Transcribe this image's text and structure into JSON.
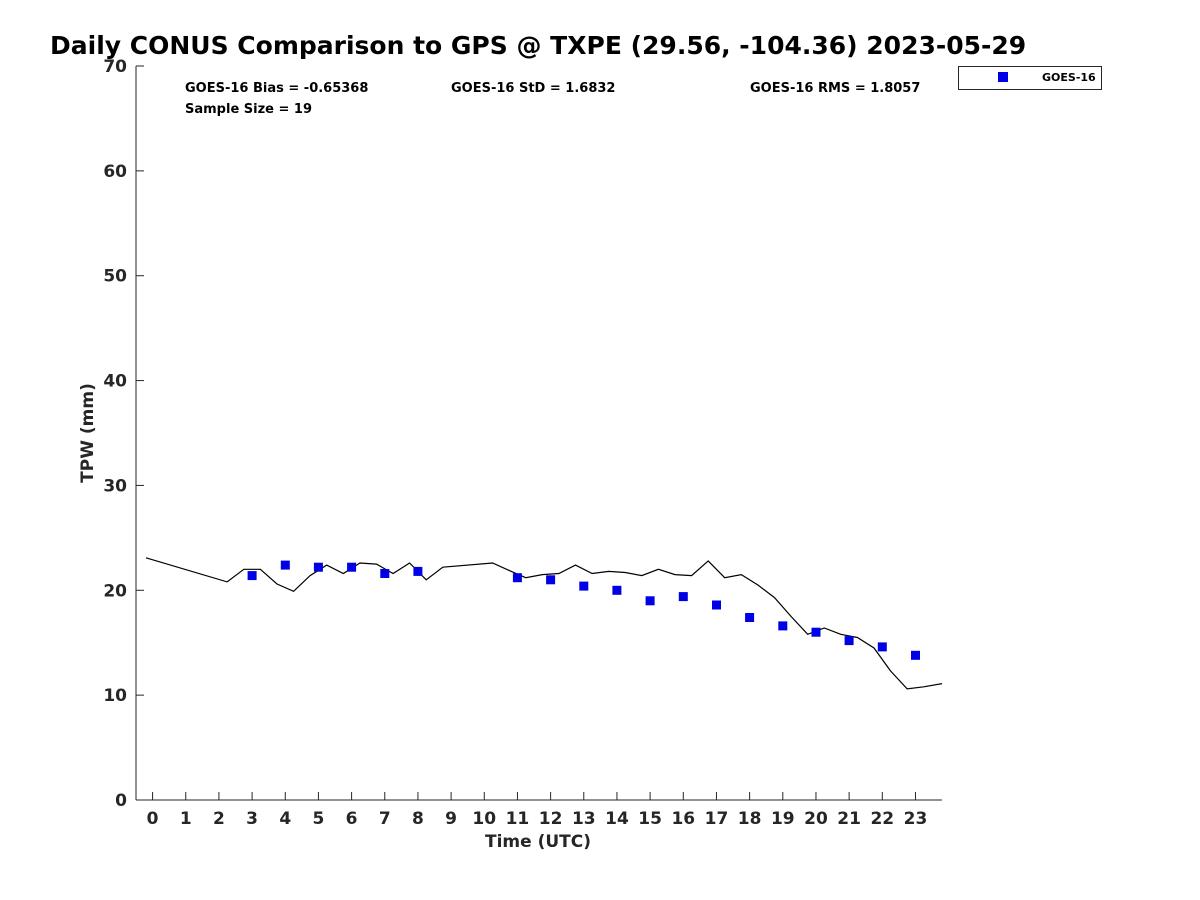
{
  "chart_data": {
    "type": "scatter",
    "title": "Daily CONUS Comparison to GPS @ TXPE (29.56, -104.36) 2023-05-29",
    "xlabel": "Time (UTC)",
    "ylabel": "TPW (mm)",
    "xlim": [
      -0.5,
      23.8
    ],
    "ylim": [
      0,
      70
    ],
    "xticks": [
      "0",
      "1",
      "2",
      "3",
      "4",
      "5",
      "6",
      "7",
      "8",
      "9",
      "10",
      "11",
      "12",
      "13",
      "14",
      "15",
      "16",
      "17",
      "18",
      "19",
      "20",
      "21",
      "22",
      "23"
    ],
    "yticks": [
      "0",
      "10",
      "20",
      "30",
      "40",
      "50",
      "60",
      "70"
    ],
    "grid": false,
    "legend_position": "top-right, outside plot",
    "stats": {
      "bias": "GOES-16 Bias = -0.65368",
      "std": "GOES-16 StD = 1.6832",
      "rms": "GOES-16 RMS = 1.8057",
      "sample_size": "Sample Size = 19"
    },
    "series": [
      {
        "name": "GOES-16",
        "kind": "scatter",
        "color": "#0000e6",
        "marker": "square",
        "x": [
          3,
          4,
          5,
          6,
          7,
          8,
          11,
          12,
          13,
          14,
          15,
          16,
          17,
          18,
          19,
          20,
          21,
          22,
          23
        ],
        "y": [
          21.4,
          22.4,
          22.2,
          22.2,
          21.6,
          21.8,
          21.2,
          21.0,
          20.4,
          20.0,
          19.0,
          19.4,
          18.6,
          17.4,
          16.6,
          16.0,
          15.2,
          14.6,
          13.8
        ]
      },
      {
        "kind": "line",
        "color": "#000000",
        "x": [
          -0.2,
          2.25,
          2.75,
          3.25,
          3.75,
          4.25,
          4.75,
          5.25,
          5.75,
          6.25,
          6.75,
          7.25,
          7.75,
          8.25,
          8.75,
          10.25,
          10.75,
          11.25,
          11.75,
          12.25,
          12.75,
          13.25,
          13.75,
          14.25,
          14.75,
          15.25,
          15.75,
          16.25,
          16.75,
          17.25,
          17.75,
          18.25,
          18.75,
          19.25,
          19.75,
          20.25,
          20.75,
          21.25,
          21.75,
          22.25,
          22.75,
          23.25,
          23.8
        ],
        "y": [
          23.1,
          20.8,
          22.0,
          22.0,
          20.6,
          19.9,
          21.4,
          22.4,
          21.6,
          22.6,
          22.5,
          21.6,
          22.6,
          21.0,
          22.2,
          22.6,
          21.9,
          21.2,
          21.5,
          21.6,
          22.4,
          21.6,
          21.8,
          21.7,
          21.4,
          22.0,
          21.5,
          21.4,
          22.8,
          21.2,
          21.5,
          20.5,
          19.3,
          17.5,
          15.8,
          16.4,
          15.8,
          15.5,
          14.5,
          12.3,
          10.6,
          10.8,
          11.1
        ]
      }
    ]
  }
}
